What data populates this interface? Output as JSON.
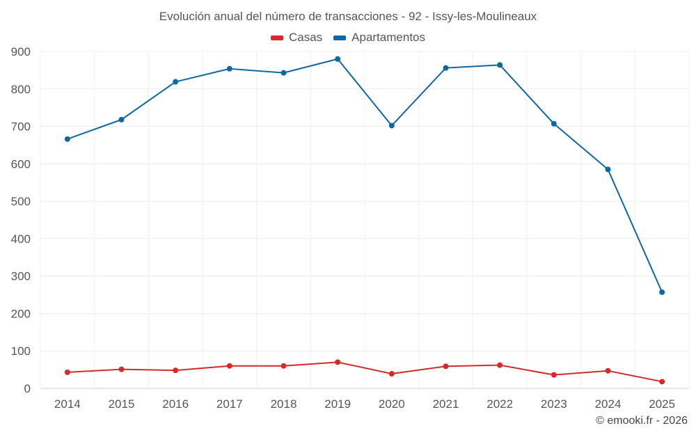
{
  "chart_data": {
    "type": "line",
    "title": "Evolución anual del número de transacciones - 92 - Issy-les-Moulineaux",
    "categories": [
      "2014",
      "2015",
      "2016",
      "2017",
      "2018",
      "2019",
      "2020",
      "2021",
      "2022",
      "2023",
      "2024",
      "2025"
    ],
    "ylim": [
      0,
      900
    ],
    "yticks": [
      "0",
      "100",
      "200",
      "300",
      "400",
      "500",
      "600",
      "700",
      "800",
      "900"
    ],
    "grid": true,
    "legend_position": "top-center",
    "series": [
      {
        "name": "Casas",
        "color": "#d42a2a",
        "values": [
          43,
          51,
          48,
          60,
          60,
          70,
          39,
          59,
          62,
          36,
          47,
          18
        ]
      },
      {
        "name": "Apartamentos",
        "color": "#0e67a0",
        "values": [
          666,
          718,
          819,
          854,
          843,
          880,
          702,
          856,
          864,
          707,
          585,
          257
        ]
      }
    ]
  },
  "credit": "© emooki.fr - 2026"
}
